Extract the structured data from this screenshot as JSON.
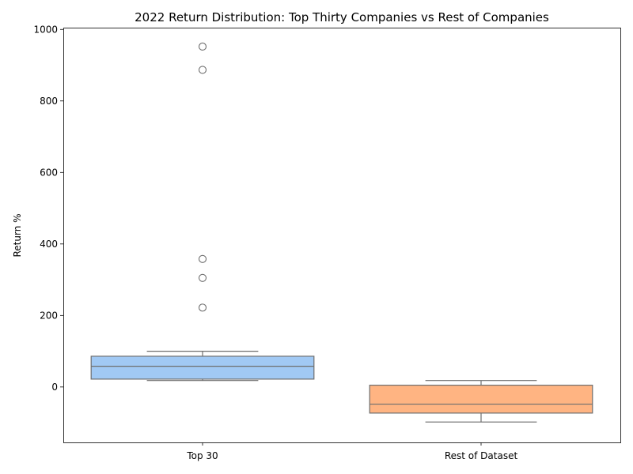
{
  "chart_data": {
    "type": "box",
    "title": "2022 Return Distribution: Top Thirty Companies vs Rest of Companies",
    "xlabel": "",
    "ylabel": "Return %",
    "ylim": [
      -155,
      1005
    ],
    "yticks": [
      0,
      200,
      400,
      600,
      800,
      1000
    ],
    "grid": false,
    "categories": [
      "Top 30",
      "Rest of Dataset"
    ],
    "boxes": [
      {
        "category": "Top 30",
        "whisker_low": 18,
        "q1": 22,
        "median": 58,
        "q3": 86,
        "whisker_high": 100,
        "outliers": [
          222,
          305,
          358,
          887,
          952
        ],
        "color": "#a1c9f4"
      },
      {
        "category": "Rest of Dataset",
        "whisker_low": -98,
        "q1": -73,
        "median": -48,
        "q3": 5,
        "whisker_high": 18,
        "outliers": [],
        "color": "#ffb482"
      }
    ],
    "line_color": "#6e6e6e"
  }
}
